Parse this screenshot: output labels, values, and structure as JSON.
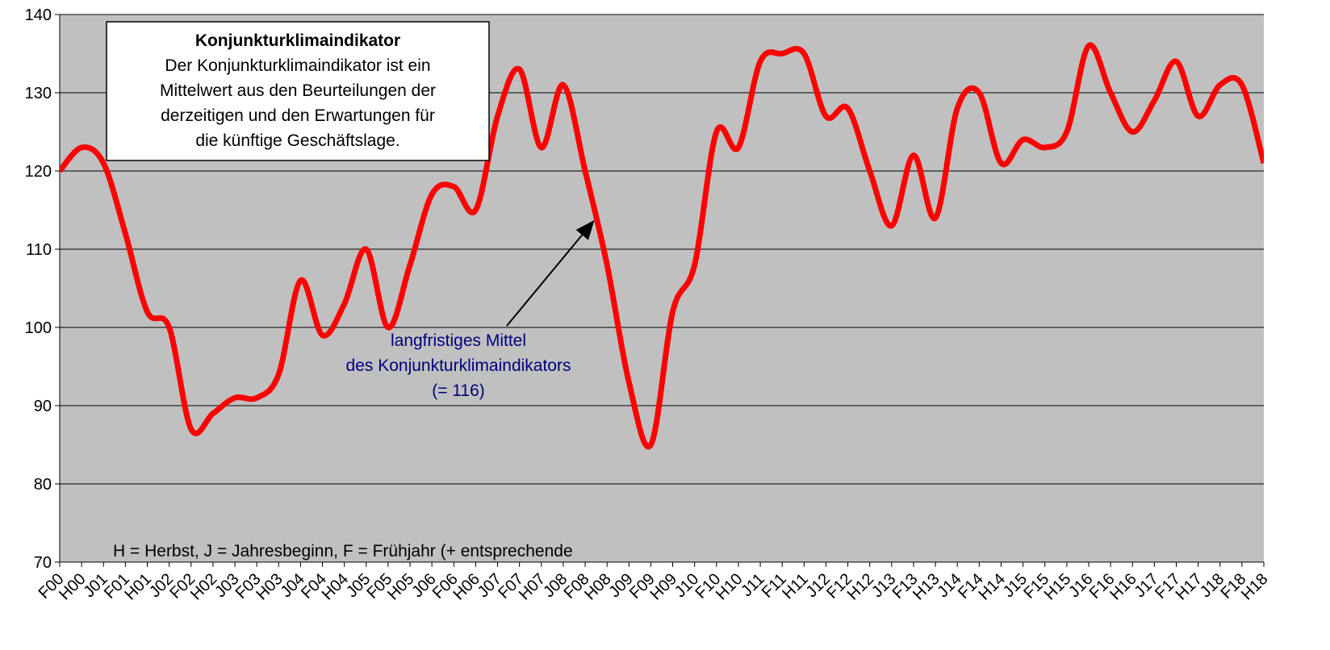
{
  "chart_data": {
    "type": "line",
    "categories": [
      "F00",
      "H00",
      "J01",
      "F01",
      "H01",
      "J02",
      "F02",
      "H02",
      "J03",
      "F03",
      "H03",
      "J04",
      "F04",
      "H04",
      "J05",
      "F05",
      "H05",
      "J06",
      "F06",
      "H06",
      "J07",
      "F07",
      "H07",
      "J08",
      "F08",
      "H08",
      "J09",
      "F09",
      "H09",
      "J10",
      "F10",
      "H10",
      "J11",
      "F11",
      "H11",
      "J12",
      "F12",
      "H12",
      "J13",
      "F13",
      "H13",
      "J14",
      "F14",
      "H14",
      "J15",
      "F15",
      "H15",
      "J16",
      "F16",
      "H16",
      "J17",
      "F17",
      "H17",
      "J18",
      "F18",
      "H18"
    ],
    "series": [
      {
        "name": "Konjunkturklimaindikator",
        "color": "#ff0000",
        "values": [
          120,
          123,
          121,
          112,
          102,
          100,
          87,
          89,
          91,
          91,
          94,
          106,
          99,
          103,
          110,
          100,
          108,
          117,
          118,
          115,
          127,
          133,
          123,
          131,
          120,
          108,
          93,
          85,
          102,
          108,
          125,
          123,
          134,
          135,
          135,
          127,
          128,
          120,
          113,
          122,
          114,
          128,
          130,
          121,
          124,
          123,
          125,
          136,
          130,
          125,
          129,
          134,
          127,
          131,
          131,
          121
        ]
      }
    ],
    "ylim": [
      70,
      140
    ],
    "yticks": [
      70,
      80,
      90,
      100,
      110,
      120,
      130,
      140
    ],
    "grid": true,
    "background": "#c0c0c0",
    "annotations": {
      "box_title": "Konjunkturklimaindikator",
      "box_lines": [
        "Der Konjunkturklimaindikator ist ein",
        "Mittelwert aus den Beurteilungen der",
        "derzeitigen und den Erwartungen für",
        "die künftige Geschäftslage."
      ],
      "mean_lines": [
        "langfristiges Mittel",
        "des Konjunkturklimaindikators",
        "(= 116)"
      ],
      "footnote": "H = Herbst, J = Jahresbeginn, F = Frühjahr (+ entsprechende"
    }
  }
}
